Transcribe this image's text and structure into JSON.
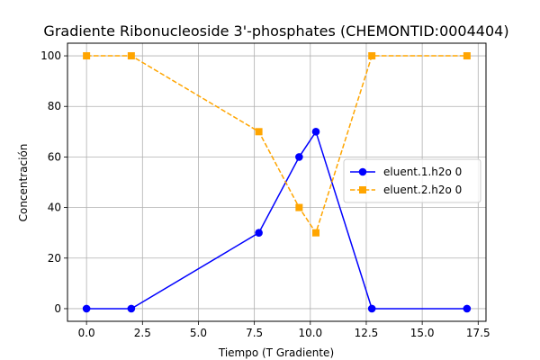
{
  "chart_data": {
    "type": "line",
    "title": "Gradiente Ribonucleoside 3'-phosphates (CHEMONTID:0004404)",
    "xlabel": "Tiempo (T Gradiente)",
    "ylabel": "Concentración",
    "xlim": [
      -0.85,
      17.85
    ],
    "ylim": [
      -5,
      105
    ],
    "xticks": [
      0.0,
      2.5,
      5.0,
      7.5,
      10.0,
      12.5,
      15.0,
      17.5
    ],
    "xtick_labels": [
      "0.0",
      "2.5",
      "5.0",
      "7.5",
      "10.0",
      "12.5",
      "15.0",
      "17.5"
    ],
    "yticks": [
      0,
      20,
      40,
      60,
      80,
      100
    ],
    "ytick_labels": [
      "0",
      "20",
      "40",
      "60",
      "80",
      "100"
    ],
    "grid": true,
    "legend_position": "center-right",
    "series": [
      {
        "name": "eluent.1.h2o 0",
        "color": "#0000ff",
        "line_style": "solid",
        "marker": "circle",
        "x": [
          0,
          2,
          7.7,
          9.5,
          10.25,
          12.75,
          17
        ],
        "y": [
          0,
          0,
          30,
          60,
          70,
          0,
          0
        ]
      },
      {
        "name": "eluent.2.h2o 0",
        "color": "#ffa500",
        "line_style": "dashed",
        "marker": "square",
        "x": [
          0,
          2,
          7.7,
          9.5,
          10.25,
          12.75,
          17
        ],
        "y": [
          100,
          100,
          70,
          40,
          30,
          100,
          100
        ]
      }
    ]
  }
}
